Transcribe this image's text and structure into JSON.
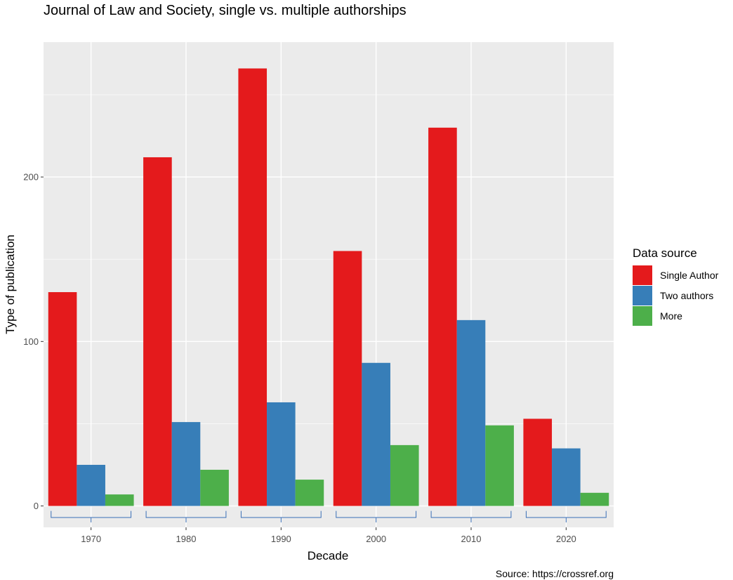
{
  "chart_data": {
    "type": "bar",
    "title": "Journal of Law and Society, single vs. multiple authorships",
    "xlabel": "Decade",
    "ylabel": "Type of publication",
    "caption": "Source: https://crossref.org",
    "categories": [
      "1970",
      "1980",
      "1990",
      "2000",
      "2010",
      "2020"
    ],
    "series": [
      {
        "name": "Single Author",
        "color": "#E41A1C",
        "values": [
          130,
          212,
          266,
          155,
          230,
          53
        ]
      },
      {
        "name": "Two authors",
        "color": "#377EB8",
        "values": [
          25,
          51,
          63,
          87,
          113,
          35
        ]
      },
      {
        "name": "More",
        "color": "#4DAF4A",
        "values": [
          7,
          22,
          16,
          37,
          49,
          8
        ]
      }
    ],
    "legend": {
      "title": "Data source",
      "position": "right"
    },
    "ylim": [
      -13,
      282
    ],
    "yticks": [
      0,
      100,
      200
    ],
    "ytick_labels": [
      "0",
      "100",
      "200"
    ],
    "grid": true,
    "category_brackets": true
  }
}
